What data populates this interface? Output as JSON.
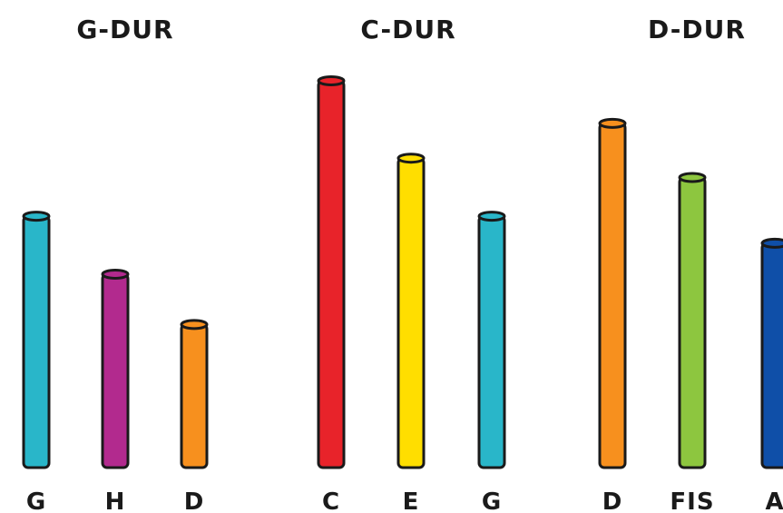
{
  "chords": [
    {
      "title": "G-DUR",
      "bars": [
        {
          "note": "G",
          "color": "#29b6c9",
          "level": 0.65
        },
        {
          "note": "H",
          "color": "#b22a8e",
          "level": 0.5
        },
        {
          "note": "D",
          "color": "#f7901e",
          "level": 0.37
        }
      ]
    },
    {
      "title": "C-DUR",
      "bars": [
        {
          "note": "C",
          "color": "#e8232a",
          "level": 1.0
        },
        {
          "note": "E",
          "color": "#ffde00",
          "level": 0.8
        },
        {
          "note": "G",
          "color": "#29b6c9",
          "level": 0.65
        }
      ]
    },
    {
      "title": "D-DUR",
      "bars": [
        {
          "note": "D",
          "color": "#f7901e",
          "level": 0.89
        },
        {
          "note": "FIS",
          "color": "#8dc63f",
          "level": 0.75
        },
        {
          "note": "A",
          "color": "#0f4fa8",
          "level": 0.58
        }
      ]
    }
  ]
}
